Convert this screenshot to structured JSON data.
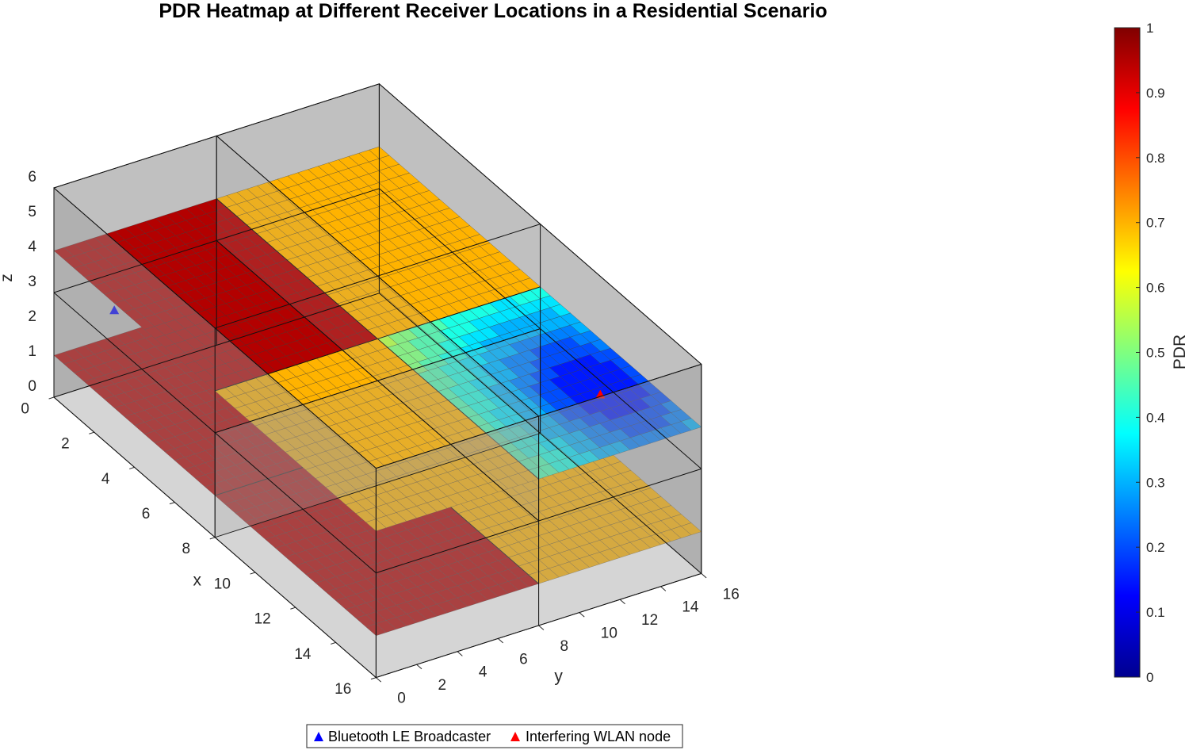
{
  "chart_data": {
    "type": "heatmap",
    "title": "PDR Heatmap at Different Receiver Locations in a Residential Scenario",
    "xlabel": "x",
    "ylabel": "y",
    "zlabel": "z",
    "xlim": [
      0,
      16
    ],
    "ylim": [
      0,
      16
    ],
    "zlim": [
      0,
      6
    ],
    "xticks": [
      "0",
      "2",
      "4",
      "6",
      "8",
      "10",
      "12",
      "14",
      "16"
    ],
    "yticks": [
      "0",
      "2",
      "4",
      "6",
      "8",
      "10",
      "12",
      "14",
      "16"
    ],
    "zticks": [
      "0",
      "1",
      "2",
      "3",
      "4",
      "5",
      "6"
    ],
    "floors": [
      {
        "z": 1.2,
        "x": [
          0,
          16
        ],
        "y": [
          0,
          16
        ]
      },
      {
        "z": 4.2,
        "x": [
          0,
          16
        ],
        "y": [
          0,
          16
        ]
      }
    ],
    "rooms": [
      {
        "x": [
          0,
          8
        ],
        "y": [
          0,
          8
        ],
        "z": [
          0,
          3
        ]
      },
      {
        "x": [
          8,
          16
        ],
        "y": [
          0,
          8
        ],
        "z": [
          0,
          3
        ]
      },
      {
        "x": [
          0,
          8
        ],
        "y": [
          8,
          16
        ],
        "z": [
          0,
          3
        ]
      },
      {
        "x": [
          8,
          16
        ],
        "y": [
          8,
          16
        ],
        "z": [
          0,
          3
        ]
      },
      {
        "x": [
          0,
          8
        ],
        "y": [
          0,
          8
        ],
        "z": [
          3,
          6
        ]
      },
      {
        "x": [
          8,
          16
        ],
        "y": [
          0,
          8
        ],
        "z": [
          3,
          6
        ]
      },
      {
        "x": [
          0,
          8
        ],
        "y": [
          8,
          16
        ],
        "z": [
          3,
          6
        ]
      },
      {
        "x": [
          8,
          16
        ],
        "y": [
          8,
          16
        ],
        "z": [
          3,
          6
        ]
      }
    ],
    "pdr_regions": [
      {
        "floor": 1,
        "x": [
          0,
          16
        ],
        "y": [
          0,
          8
        ],
        "pdr": 0.95
      },
      {
        "floor": 1,
        "x": [
          0,
          16
        ],
        "y": [
          8,
          16
        ],
        "pdr": 0.7
      },
      {
        "floor": 2,
        "x": [
          0,
          8
        ],
        "y": [
          0,
          8
        ],
        "pdr": 0.95
      },
      {
        "floor": 2,
        "x": [
          8,
          16
        ],
        "y": [
          0,
          8
        ],
        "pdr": 0.7
      },
      {
        "floor": 2,
        "x": [
          0,
          8
        ],
        "y": [
          8,
          16
        ],
        "pdr": 0.7
      },
      {
        "floor": 2,
        "x": [
          8,
          16
        ],
        "y": [
          8,
          16
        ],
        "pdr_range": [
          0.15,
          0.65
        ],
        "interferer_xy": [
          13,
          14
        ]
      }
    ],
    "markers": [
      {
        "name": "Bluetooth LE Broadcaster",
        "x": 3,
        "y": 0,
        "z": 4,
        "color": "#0000ff"
      },
      {
        "name": "Interfering WLAN node",
        "x": 13,
        "y": 14,
        "z": 4,
        "color": "#ff0000"
      }
    ],
    "colorbar": {
      "label": "PDR",
      "range": [
        0,
        1
      ],
      "ticks": [
        "0",
        "0.1",
        "0.2",
        "0.3",
        "0.4",
        "0.5",
        "0.6",
        "0.7",
        "0.8",
        "0.9",
        "1"
      ],
      "colormap": "jet"
    },
    "legend": {
      "placement": "bottom-center",
      "entries": [
        "Bluetooth LE Broadcaster",
        "Interfering WLAN node"
      ]
    }
  }
}
